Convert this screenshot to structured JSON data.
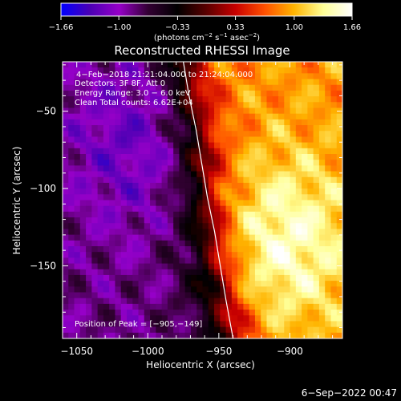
{
  "colorbar": {
    "ticks": [
      "−1.66",
      "−1.00",
      "−0.33",
      "0.33",
      "1.00",
      "1.66"
    ],
    "tick_values": [
      -1.66,
      -1.0,
      -0.33,
      0.33,
      1.0,
      1.66
    ],
    "unit_main": "(photons cm",
    "unit_exp1": "−2",
    "unit_s": " s",
    "unit_exp2": "−1",
    "unit_asec": " asec",
    "unit_exp3": "−2",
    "unit_close": ")",
    "colormap": [
      "#0000ff",
      "#4b00b4",
      "#9600c8",
      "#320032",
      "#000000",
      "#5a0000",
      "#c80000",
      "#ff5000",
      "#ffb400",
      "#ffff96",
      "#ffffff"
    ]
  },
  "chart_data": {
    "type": "heatmap",
    "title": "Reconstructed RHESSI Image",
    "xlabel": "Heliocentric X (arcsec)",
    "ylabel": "Heliocentric Y (arcsec)",
    "xlim": [
      -1060,
      -863
    ],
    "ylim": [
      -197,
      -18
    ],
    "x_ticks": [
      -1050,
      -1000,
      -950,
      -900
    ],
    "x_tick_labels": [
      "−1050",
      "−1000",
      "−950",
      "−900"
    ],
    "y_ticks": [
      -50,
      -100,
      -150
    ],
    "y_tick_labels": [
      "−50",
      "−100",
      "−150"
    ],
    "annotations": [
      "4−Feb−2018 21:21:04.000 to 21:24:04.000",
      "Detectors: 3F 8F, Att 0",
      "Energy Range: 3.0 − 6.0 keV",
      "Clean     Total counts: 6.62E+04"
    ],
    "peak_label": "Position of Peak = [−905,−149]",
    "peak": [
      -905,
      -149
    ],
    "value_range": [
      -1.66,
      1.66
    ],
    "solar_limb": {
      "x": [
        -975,
        -971,
        -966,
        -962,
        -958,
        -953,
        -949,
        -945,
        -940
      ],
      "y": [
        -18,
        -40,
        -62,
        -84,
        -106,
        -128,
        -150,
        -172,
        -197
      ]
    },
    "features": [
      {
        "name": "negative region",
        "x": -1010,
        "y": -70,
        "value": -1.2
      },
      {
        "name": "bright source",
        "x": -905,
        "y": -135,
        "value": 1.5
      }
    ]
  },
  "footer": {
    "timestamp": "6−Sep−2022 00:47"
  }
}
